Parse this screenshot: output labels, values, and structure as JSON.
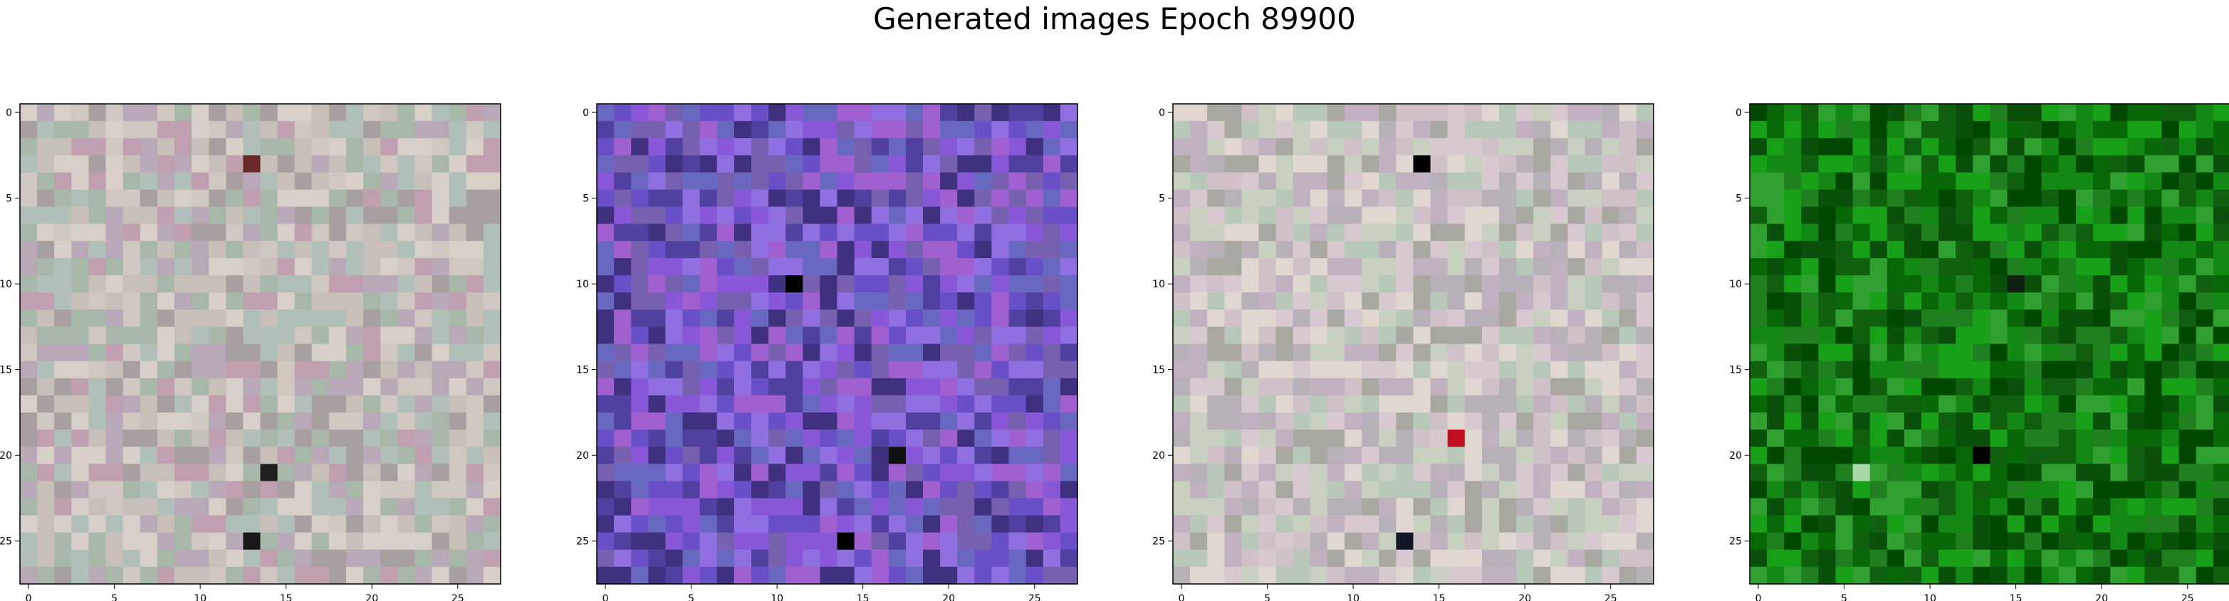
{
  "figure_title": "Generated images Epoch 89900",
  "chart_data": [
    {
      "type": "heatmap",
      "title": "",
      "xlabel": "",
      "ylabel": "",
      "image_size": 28,
      "xticks": [
        "0",
        "5",
        "10",
        "15",
        "20",
        "25"
      ],
      "yticks": [
        "0",
        "5",
        "10",
        "15",
        "20",
        "25"
      ],
      "palette": [
        "#c8c0b8",
        "#b8a8b8",
        "#d0c8c0",
        "#a8b8a8",
        "#c0a0b0",
        "#d8d0c8",
        "#a8a0a0",
        "#b0c0b8"
      ],
      "highlights": [
        {
          "row": 3,
          "col": 13,
          "color": "#6a2a2a"
        },
        {
          "row": 21,
          "col": 14,
          "color": "#202020"
        },
        {
          "row": 25,
          "col": 13,
          "color": "#181818"
        }
      ]
    },
    {
      "type": "heatmap",
      "title": "",
      "xlabel": "",
      "ylabel": "",
      "image_size": 28,
      "xticks": [
        "0",
        "5",
        "10",
        "15",
        "20",
        "25"
      ],
      "yticks": [
        "0",
        "5",
        "10",
        "15",
        "20",
        "25"
      ],
      "palette": [
        "#6a50c8",
        "#8858d8",
        "#5040a0",
        "#7860b0",
        "#9070e0",
        "#403080",
        "#6868c0",
        "#a060d0"
      ],
      "highlights": [
        {
          "row": 25,
          "col": 14,
          "color": "#000000"
        },
        {
          "row": 20,
          "col": 17,
          "color": "#101010"
        },
        {
          "row": 10,
          "col": 11,
          "color": "#000000"
        }
      ]
    },
    {
      "type": "heatmap",
      "title": "",
      "xlabel": "",
      "ylabel": "",
      "image_size": 28,
      "xticks": [
        "0",
        "5",
        "10",
        "15",
        "20",
        "25"
      ],
      "yticks": [
        "0",
        "5",
        "10",
        "15",
        "20",
        "25"
      ],
      "palette": [
        "#d0c0c8",
        "#b8b0b8",
        "#c8d0c0",
        "#d8c8d0",
        "#a8a8a0",
        "#c0b0c0",
        "#e0d8d0",
        "#b8c8b8"
      ],
      "highlights": [
        {
          "row": 3,
          "col": 14,
          "color": "#000000"
        },
        {
          "row": 19,
          "col": 16,
          "color": "#c01020"
        },
        {
          "row": 25,
          "col": 13,
          "color": "#101828"
        }
      ]
    },
    {
      "type": "heatmap",
      "title": "",
      "xlabel": "",
      "ylabel": "",
      "image_size": 28,
      "xticks": [
        "0",
        "5",
        "10",
        "15",
        "20",
        "25"
      ],
      "yticks": [
        "0",
        "5",
        "10",
        "15",
        "20",
        "25"
      ],
      "palette": [
        "#106010",
        "#208020",
        "#0a500a",
        "#18a018",
        "#086808",
        "#30a030",
        "#004800",
        "#148814"
      ],
      "highlights": [
        {
          "row": 20,
          "col": 13,
          "color": "#000000"
        },
        {
          "row": 10,
          "col": 15,
          "color": "#102010"
        },
        {
          "row": 21,
          "col": 6,
          "color": "#a8d8a8"
        }
      ]
    }
  ]
}
